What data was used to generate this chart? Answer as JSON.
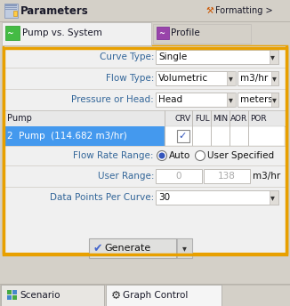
{
  "bg_color": "#d4d0c8",
  "white": "#ffffff",
  "orange_border": "#e8a000",
  "blue_highlight": "#4499ee",
  "light_gray": "#e8e8e8",
  "mid_gray": "#d4d0c8",
  "text_dark": "#1a1a3a",
  "text_blue": "#336699",
  "text_gray": "#aaaaaa",
  "green_icon": "#44bb44",
  "purple_icon": "#9944aa",
  "title": "Parameters",
  "formatting": "Formatting >",
  "tab1": "Pump vs. System",
  "tab2": "Profile",
  "curve_type_label": "Curve Type:",
  "curve_type_val": "Single",
  "flow_type_label": "Flow Type:",
  "flow_type_val": "Volumetric",
  "flow_type_unit": "m3/hr",
  "pressure_label": "Pressure or Head:",
  "pressure_val": "Head",
  "pressure_unit": "meters",
  "pump_col": "Pump",
  "col_crv": "CRV",
  "col_ful": "FUL",
  "col_min": "MIN",
  "col_aor": "AOR",
  "col_por": "POR",
  "pump_row": "2  Pump  (114.682 m3/hr)",
  "flow_range_label": "Flow Rate Range:",
  "radio1": "Auto",
  "radio2": "User Specified",
  "user_range_label": "User Range:",
  "user_range_0": "0",
  "user_range_138": "138",
  "user_range_unit": "m3/hr",
  "data_points_label": "Data Points Per Curve:",
  "data_points_val": "30",
  "generate_btn": "Generate",
  "tab_scenario": "Scenario",
  "tab_graph": "Graph Control",
  "figsize": [
    3.26,
    3.44
  ],
  "dpi": 100
}
